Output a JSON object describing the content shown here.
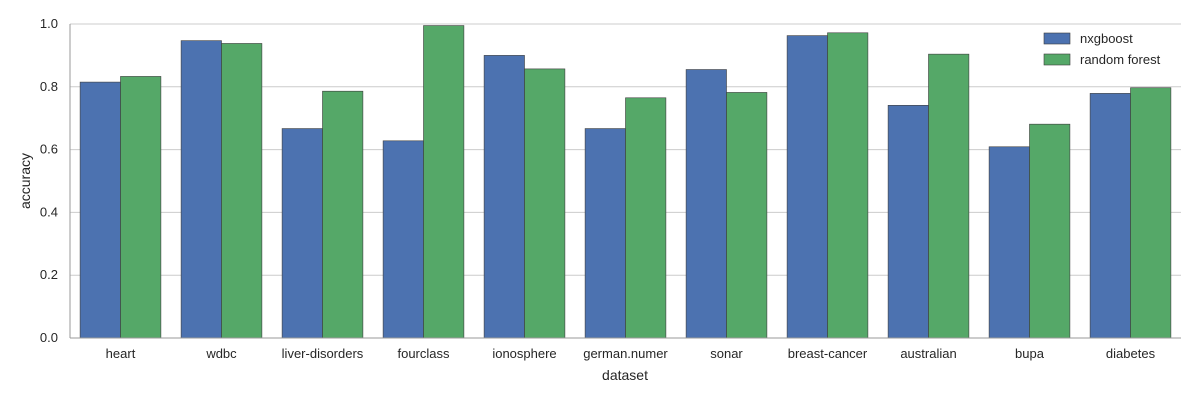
{
  "chart_data": {
    "type": "bar",
    "title": "",
    "xlabel": "dataset",
    "ylabel": "accuracy",
    "ylim": [
      0.0,
      1.0
    ],
    "yticks": [
      0.0,
      0.2,
      0.4,
      0.6,
      0.8,
      1.0
    ],
    "ytick_labels": [
      "0.0",
      "0.2",
      "0.4",
      "0.6",
      "0.8",
      "1.0"
    ],
    "grid": "horizontal",
    "legend_position": "top-right",
    "categories": [
      "heart",
      "wdbc",
      "liver-disorders",
      "fourclass",
      "ionosphere",
      "german.numer",
      "sonar",
      "breast-cancer",
      "australian",
      "bupa",
      "diabetes"
    ],
    "series": [
      {
        "name": "nxgboost",
        "color": "#4c72b0",
        "values": [
          0.815,
          0.947,
          0.667,
          0.628,
          0.9,
          0.667,
          0.855,
          0.963,
          0.741,
          0.609,
          0.779
        ]
      },
      {
        "name": "random forest",
        "color": "#55a868",
        "values": [
          0.833,
          0.938,
          0.786,
          0.995,
          0.857,
          0.765,
          0.782,
          0.972,
          0.904,
          0.681,
          0.797
        ]
      }
    ]
  }
}
